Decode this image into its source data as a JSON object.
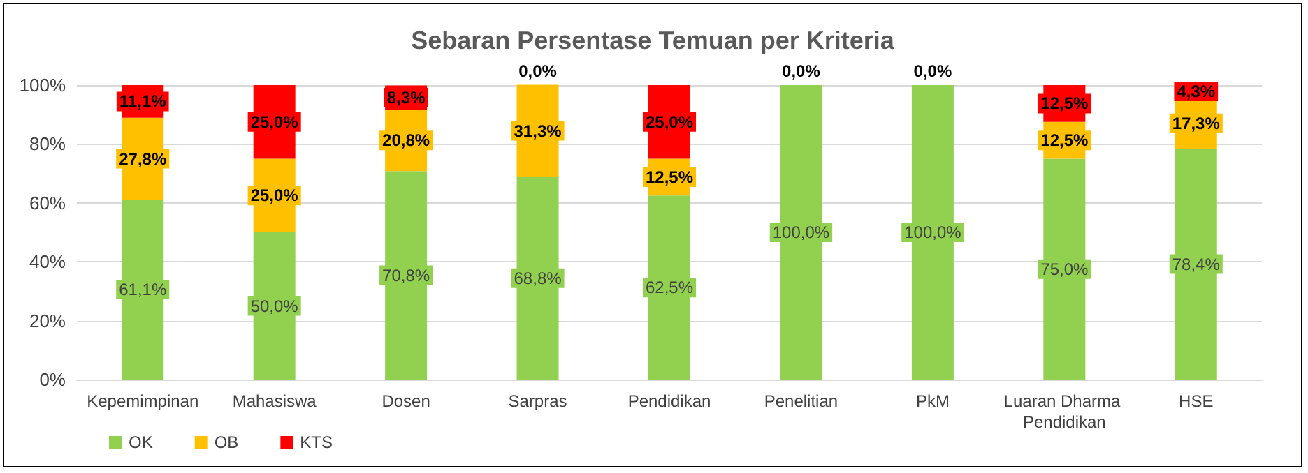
{
  "chart_data": {
    "type": "bar",
    "title": "Sebaran Persentase Temuan per Kriteria",
    "stacked": true,
    "categories": [
      "Kepemimpinan",
      "Mahasiswa",
      "Dosen",
      "Sarpras",
      "Pendidikan",
      "Penelitian",
      "PkM",
      "Luaran Dharma Pendidikan",
      "HSE"
    ],
    "series": [
      {
        "name": "OK",
        "color": "#92d050",
        "values": [
          61.1,
          50.0,
          70.8,
          68.8,
          62.5,
          100.0,
          100.0,
          75.0,
          78.4
        ],
        "value_labels": [
          "61,1%",
          "50,0%",
          "70,8%",
          "68,8%",
          "62,5%",
          "100,0%",
          "100,0%",
          "75,0%",
          "78,4%"
        ]
      },
      {
        "name": "OB",
        "color": "#ffc000",
        "values": [
          27.8,
          25.0,
          20.8,
          31.3,
          12.5,
          0.0,
          0.0,
          12.5,
          17.3
        ],
        "value_labels": [
          "27,8%",
          "25,0%",
          "20,8%",
          "31,3%",
          "12,5%",
          null,
          null,
          "12,5%",
          "17,3%"
        ]
      },
      {
        "name": "KTS",
        "color": "#ff0000",
        "values": [
          11.1,
          25.0,
          8.3,
          0.0,
          25.0,
          0.0,
          0.0,
          12.5,
          4.3
        ],
        "value_labels": [
          "11,1%",
          "25,0%",
          "8,3%",
          "0,0%",
          "25,0%",
          "0,0%",
          "0,0%",
          "12,5%",
          "4,3%"
        ]
      }
    ],
    "ylim": [
      0,
      100
    ],
    "yticks": [
      {
        "value": 0,
        "label": "0%"
      },
      {
        "value": 20,
        "label": "20%"
      },
      {
        "value": 40,
        "label": "40%"
      },
      {
        "value": 60,
        "label": "60%"
      },
      {
        "value": 80,
        "label": "80%"
      },
      {
        "value": 100,
        "label": "100%"
      }
    ],
    "grid": "y",
    "legend": "bottom left"
  }
}
